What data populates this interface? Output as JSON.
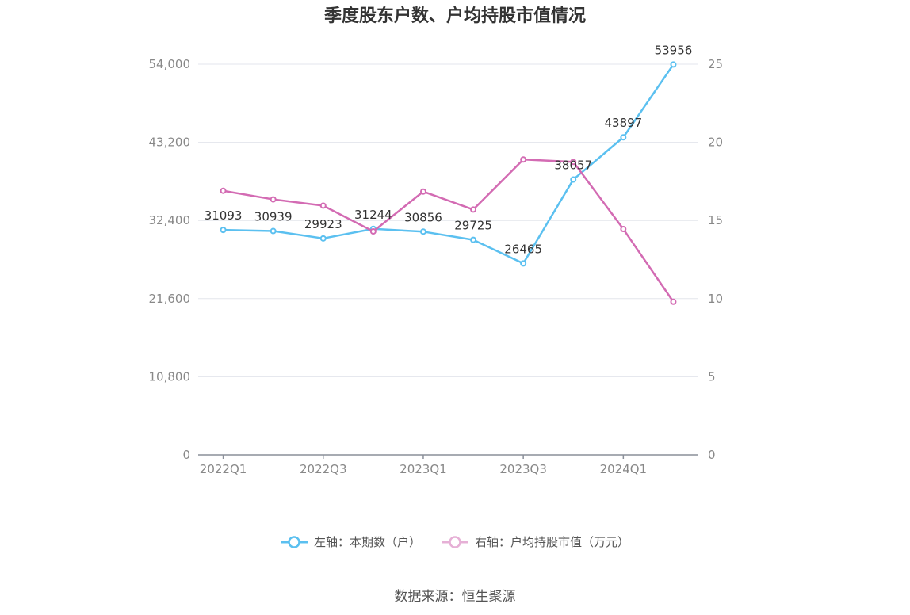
{
  "chart_data": {
    "type": "line",
    "title": "季度股东户数、户均持股市值情况",
    "categories": [
      "2022Q1",
      "2022Q2",
      "2022Q3",
      "2022Q4",
      "2023Q1",
      "2023Q2",
      "2023Q3",
      "2023Q4",
      "2024Q1",
      "2024Q2"
    ],
    "x_tick_labels": [
      "2022Q1",
      "2022Q3",
      "2023Q1",
      "2023Q3",
      "2024Q1"
    ],
    "left_axis": {
      "ticks": [
        "0",
        "10,800",
        "21,600",
        "32,400",
        "43,200",
        "54,000"
      ],
      "ylim": [
        0,
        54000
      ]
    },
    "right_axis": {
      "ticks": [
        "0",
        "5",
        "10",
        "15",
        "20",
        "25"
      ],
      "ylim": [
        0,
        25
      ]
    },
    "series": [
      {
        "name": "左轴：本期数（户）",
        "axis": "left",
        "color": "#5bc0f0",
        "values": [
          31093,
          30939,
          29923,
          31244,
          30856,
          29725,
          26465,
          38057,
          43897,
          53956
        ],
        "labels": [
          "31093",
          "30939",
          "29923",
          "31244",
          "30856",
          "29725",
          "26465",
          "38057",
          "43897",
          "53956"
        ]
      },
      {
        "name": "右轴：户均持股市值（万元）",
        "axis": "right",
        "color": "#d36bb3",
        "values": [
          16.9,
          16.35,
          15.95,
          14.3,
          16.85,
          15.7,
          18.9,
          18.75,
          14.45,
          9.8
        ]
      }
    ],
    "legend_position": "bottom",
    "grid": true
  },
  "source": "数据来源：恒生聚源"
}
